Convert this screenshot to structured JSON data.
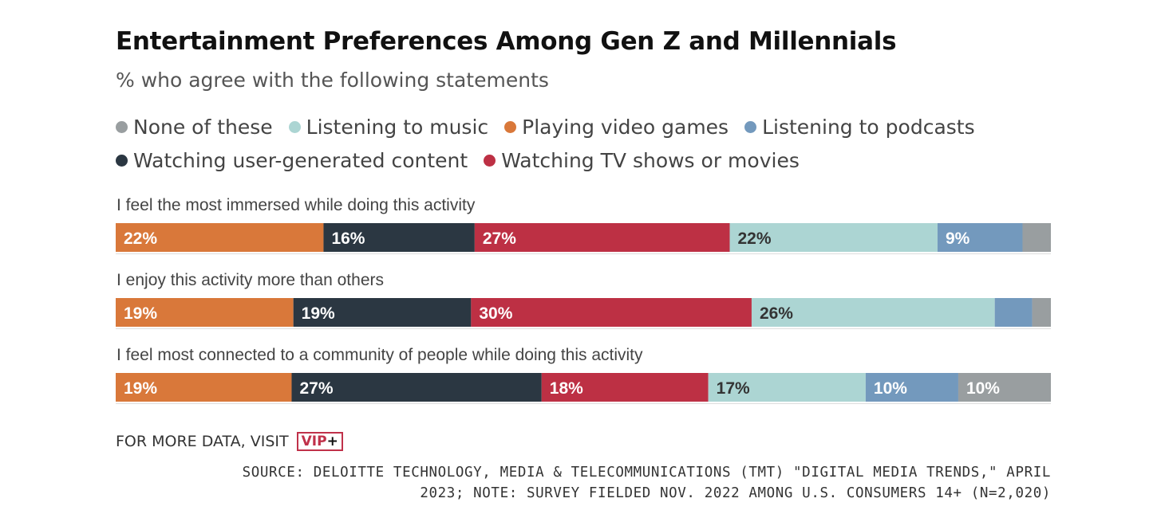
{
  "chart_data": {
    "type": "bar",
    "orientation": "horizontal",
    "stacked": true,
    "title": "Entertainment Preferences Among Gen Z and Millennials",
    "subtitle": "% who agree with the following statements",
    "categories": [
      "I feel the most immersed while doing this activity",
      "I enjoy this activity more than others",
      "I feel most connected to a community of people while doing this activity"
    ],
    "series": [
      {
        "name": "Playing video games",
        "color": "#d9783a",
        "values": [
          22,
          19,
          19
        ],
        "labels": [
          "22%",
          "19%",
          "19%"
        ]
      },
      {
        "name": "Watching user-generated content",
        "color": "#2b3742",
        "values": [
          16,
          19,
          27
        ],
        "labels": [
          "16%",
          "19%",
          "27%"
        ]
      },
      {
        "name": "Watching TV shows or movies",
        "color": "#bd3044",
        "values": [
          27,
          30,
          18
        ],
        "labels": [
          "27%",
          "30%",
          "18%"
        ]
      },
      {
        "name": "Listening to music",
        "color": "#acd5d3",
        "values": [
          22,
          26,
          17
        ],
        "labels": [
          "22%",
          "26%",
          "17%"
        ]
      },
      {
        "name": "Listening to podcasts",
        "color": "#7399bd",
        "values": [
          9,
          4,
          10
        ],
        "labels": [
          "9%",
          "",
          "10%"
        ]
      },
      {
        "name": "None of these",
        "color": "#999ea0",
        "values": [
          3,
          2,
          10
        ],
        "labels": [
          "",
          "",
          "10%"
        ]
      }
    ],
    "legend": {
      "placement": "top-left",
      "rows": [
        [
          "None of these",
          "Listening to music",
          "Playing video games",
          "Listening to podcasts"
        ],
        [
          "Watching user-generated content",
          "Watching TV shows or movies"
        ]
      ]
    },
    "xlim": [
      0,
      100
    ],
    "grid": false
  },
  "footer": {
    "more_data": "FOR MORE DATA, VISIT",
    "vip_v": "VIP",
    "vip_plus": "+",
    "source_line1": "SOURCE: DELOITTE TECHNOLOGY, MEDIA & TELECOMMUNICATIONS (TMT) \"DIGITAL MEDIA TRENDS,\" APRIL",
    "source_line2": "2023; NOTE: SURVEY FIELDED NOV. 2022 AMONG U.S. CONSUMERS 14+ (N=2,020)"
  }
}
